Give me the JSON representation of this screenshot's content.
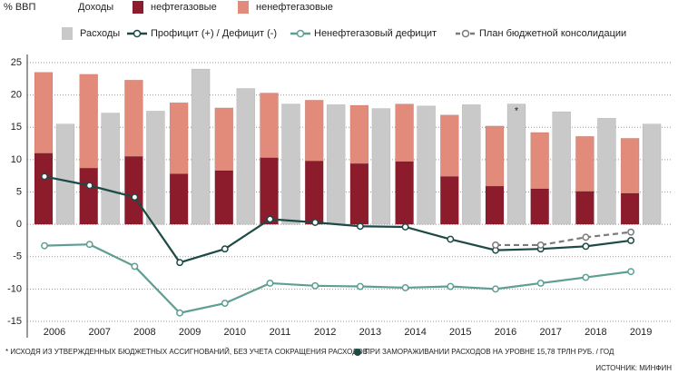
{
  "chart_data": {
    "type": "combo",
    "ylabel": "% ВВП",
    "revenue_label": "Доходы",
    "categories": [
      "2006",
      "2007",
      "2008",
      "2009",
      "2010",
      "2011",
      "2012",
      "2013",
      "2014",
      "2015",
      "2016",
      "2017",
      "2018",
      "2019"
    ],
    "series": [
      {
        "name": "нефтегазовые",
        "type": "bar",
        "stack": "revenue",
        "color": "#8c1b2c",
        "values": [
          11,
          8.7,
          10.5,
          7.8,
          8.3,
          10.3,
          9.8,
          9.4,
          9.7,
          7.4,
          5.9,
          5.5,
          5.1,
          4.8
        ]
      },
      {
        "name": "ненефтегазовые",
        "type": "bar",
        "stack": "revenue",
        "color": "#e38b7b",
        "values": [
          12.5,
          14.5,
          11.8,
          11,
          9.7,
          10,
          9.4,
          9,
          8.9,
          9.5,
          9.3,
          8.7,
          8.5,
          8.5
        ]
      },
      {
        "name": "Расходы",
        "type": "bar",
        "stack": "expenditure",
        "color": "#c9c9c9",
        "values": [
          15.5,
          17.2,
          17.5,
          24,
          21,
          18.6,
          18.5,
          17.9,
          18.3,
          18.5,
          18.6,
          17.4,
          16.4,
          15.5
        ]
      },
      {
        "name": "Профицит (+) / Дефицит (-)",
        "type": "line",
        "color": "#1d4a45",
        "dashed": false,
        "values": [
          7.4,
          6.0,
          4.2,
          -5.9,
          -3.8,
          0.8,
          0.3,
          -0.3,
          -0.4,
          -2.3,
          -4.0,
          -3.8,
          -3.4,
          -2.5
        ]
      },
      {
        "name": "Ненефтегазовый дефицит",
        "type": "line",
        "color": "#5e9f92",
        "dashed": false,
        "values": [
          -3.3,
          -3.1,
          -6.5,
          -13.7,
          -12.2,
          -9.1,
          -9.5,
          -9.6,
          -9.8,
          -9.6,
          -10.0,
          -9.1,
          -8.2,
          -7.3
        ]
      },
      {
        "name": "План бюджетной консолидации",
        "type": "line",
        "color": "#7a7a7a",
        "dashed": true,
        "values": [
          null,
          null,
          null,
          null,
          null,
          null,
          null,
          null,
          null,
          null,
          -3.2,
          -3.2,
          -2.0,
          -1.2
        ]
      }
    ],
    "annotations": [
      {
        "text": "*",
        "x": "2016"
      }
    ],
    "notes": [
      "* ИСХОДЯ ИЗ УТВЕРЖДЕННЫХ БЮДЖЕТНЫХ АССИГНОВАНИЙ, БЕЗ УЧЕТА СОКРАЩЕНИЯ РАСХОДОВ",
      "ПРИ ЗАМОРАЖИВАНИИ РАСХОДОВ НА УРОВНЕ 15,78 ТРЛН РУБ. / ГОД"
    ],
    "source": "ИСТОЧНИК: МИНФИН",
    "ylim": [
      -15,
      25
    ],
    "yticks": [
      -15,
      -10,
      -5,
      0,
      5,
      10,
      15,
      20,
      25
    ],
    "grid": true
  }
}
